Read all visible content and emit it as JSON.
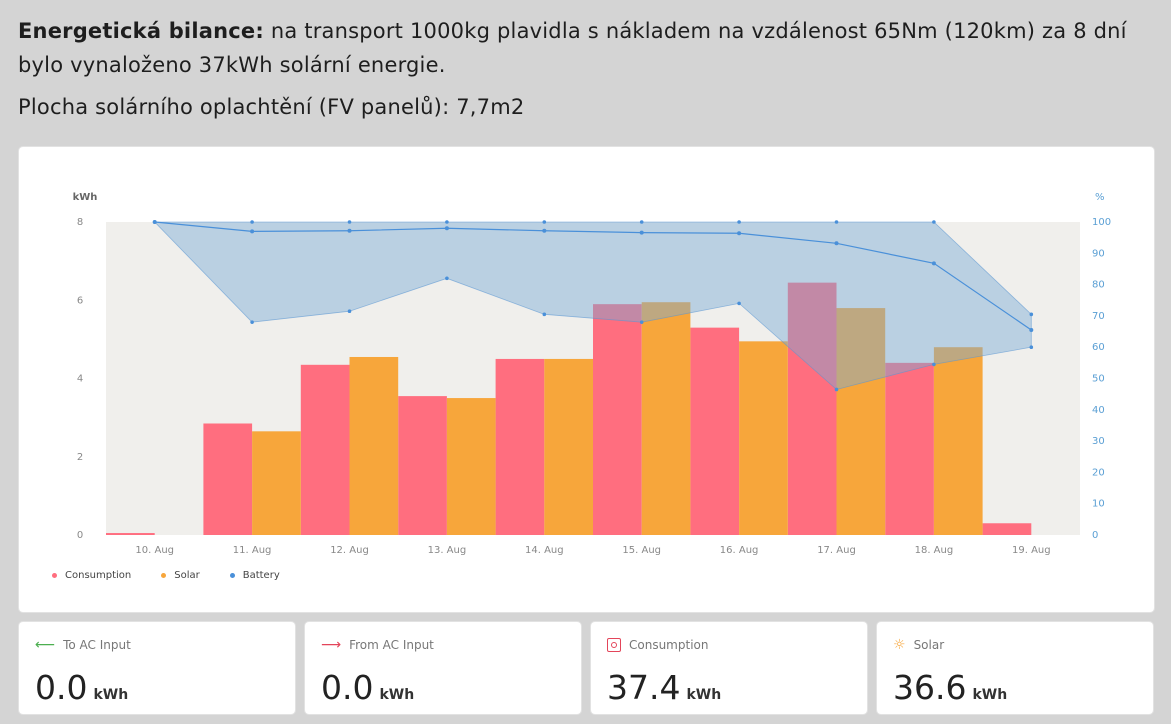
{
  "intro": {
    "line1_bold": "Energetická bilance:",
    "line1_rest": " na transport 1000kg plavidla s nákladem na vzdálenost 65Nm (120km) za 8 dní bylo vynaloženo 37kWh solární energie.",
    "line2": "Plocha solárního oplachtění (FV panelů): 7,7m2"
  },
  "chart_data": {
    "type": "bar",
    "categories": [
      "10. Aug",
      "11. Aug",
      "12. Aug",
      "13. Aug",
      "14. Aug",
      "15. Aug",
      "16. Aug",
      "17. Aug",
      "18. Aug",
      "19. Aug"
    ],
    "y_left_label": "kWh",
    "y_right_label": "%",
    "y_left_ticks": [
      0,
      2,
      4,
      6,
      8
    ],
    "y_right_ticks": [
      0,
      10,
      20,
      30,
      40,
      50,
      60,
      70,
      80,
      90,
      100
    ],
    "ylim": [
      0,
      8
    ],
    "ylim_right": [
      0,
      100
    ],
    "series": [
      {
        "name": "Consumption",
        "color": "#ff6e7f",
        "values": [
          0.05,
          2.85,
          4.35,
          3.55,
          4.5,
          5.9,
          5.3,
          6.45,
          4.4,
          0.3
        ]
      },
      {
        "name": "Solar",
        "color": "#f7a63b",
        "values": [
          0,
          2.65,
          4.55,
          3.5,
          4.5,
          5.95,
          4.95,
          5.8,
          4.8,
          0
        ]
      },
      {
        "name": "Battery",
        "color": "#4a90d9",
        "type": "line",
        "values": [
          100,
          97,
          97.2,
          98,
          97.2,
          96.6,
          96.4,
          93.2,
          86.8,
          65.5
        ],
        "min": [
          100,
          68,
          71.5,
          82,
          70.5,
          68,
          74,
          46.5,
          54.5,
          60
        ],
        "max": [
          100,
          100,
          100,
          100,
          100,
          100,
          100,
          100,
          100,
          70.5
        ]
      }
    ],
    "legend": "bottom-left",
    "grid": false
  },
  "stats": [
    {
      "label": "To AC Input",
      "value": "0.0",
      "unit": "kWh",
      "icon": "arrow-left-icon",
      "icon_color": "#4caf50"
    },
    {
      "label": "From AC Input",
      "value": "0.0",
      "unit": "kWh",
      "icon": "arrow-right-icon",
      "icon_color": "#e3455a"
    },
    {
      "label": "Consumption",
      "value": "37.4",
      "unit": "kWh",
      "icon": "consumption-icon",
      "icon_color": "#e3455a"
    },
    {
      "label": "Solar",
      "value": "36.6",
      "unit": "kWh",
      "icon": "sun-icon",
      "icon_color": "#f7a63b"
    }
  ]
}
